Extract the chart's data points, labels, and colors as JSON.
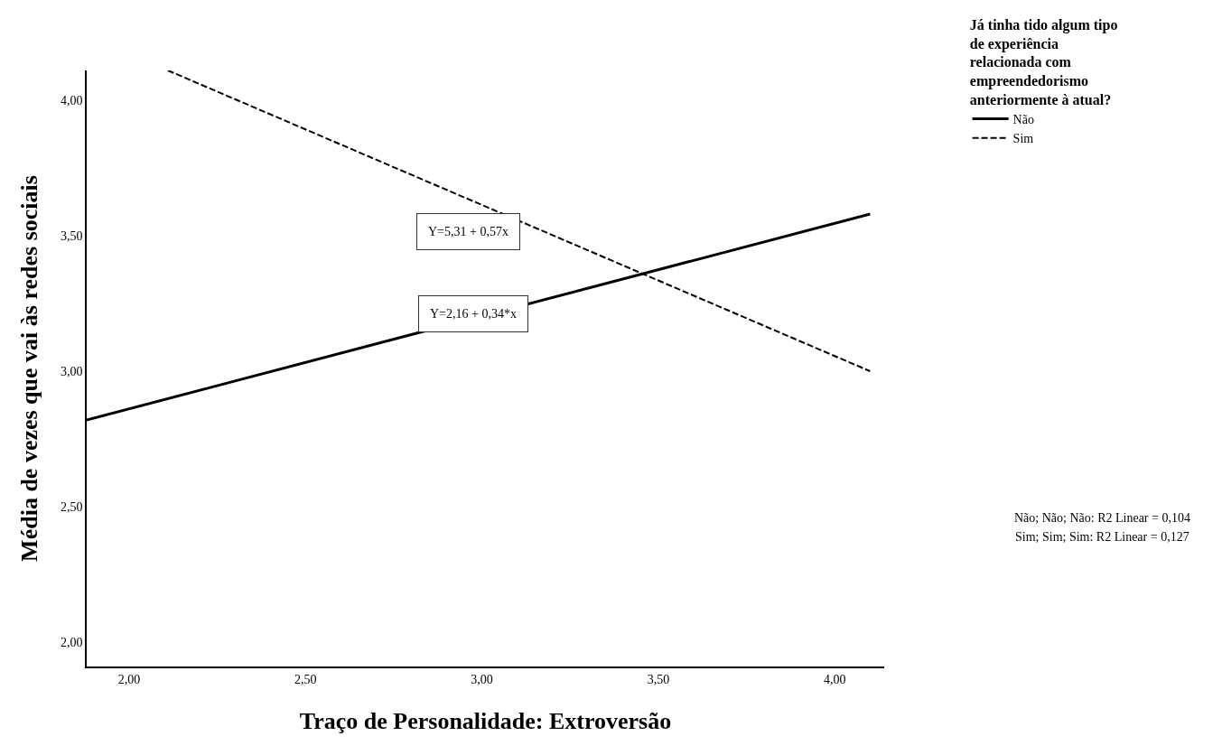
{
  "chart_data": {
    "type": "line",
    "xlabel": "Traço de Personalidade: Extroversão",
    "ylabel": "Média de vezes que vai às redes sociais",
    "legend_title": "Já tinha tido algum tipo\nde experiência\nrelacionada com\nempreendedorismo\nanteriormente à atual?",
    "legend": "top right",
    "grid": false,
    "xlim": [
      1.88,
      4.14
    ],
    "ylim": [
      1.91,
      4.11
    ],
    "xticks": [
      {
        "value": 2,
        "label": "2,00"
      },
      {
        "value": 2.5,
        "label": "2,50"
      },
      {
        "value": 3,
        "label": "3,00"
      },
      {
        "value": 3.5,
        "label": "3,50"
      },
      {
        "value": 4,
        "label": "4,00"
      }
    ],
    "yticks": [
      {
        "value": 2,
        "label": "2,00"
      },
      {
        "value": 2.5,
        "label": "2,50"
      },
      {
        "value": 3,
        "label": "3,00"
      },
      {
        "value": 3.5,
        "label": "3,50"
      },
      {
        "value": 4,
        "label": "4,00"
      }
    ],
    "series": [
      {
        "name": "Não",
        "color": "#000000",
        "line_style": "solid",
        "x": [
          1.88,
          4.1
        ],
        "values": [
          2.82,
          3.58
        ]
      },
      {
        "name": "Sim",
        "color": "#000000",
        "line_style": "dashed",
        "x": [
          2.11,
          4.1
        ],
        "values": [
          4.11,
          3.0
        ]
      }
    ],
    "annotations": [
      "Y=5,31 + 0,57x",
      "Y=2,16 + 0,34*x",
      "Não; Não; Não: R2 Linear = 0,104",
      "Sim; Sim; Sim: R2 Linear = 0,127"
    ]
  }
}
